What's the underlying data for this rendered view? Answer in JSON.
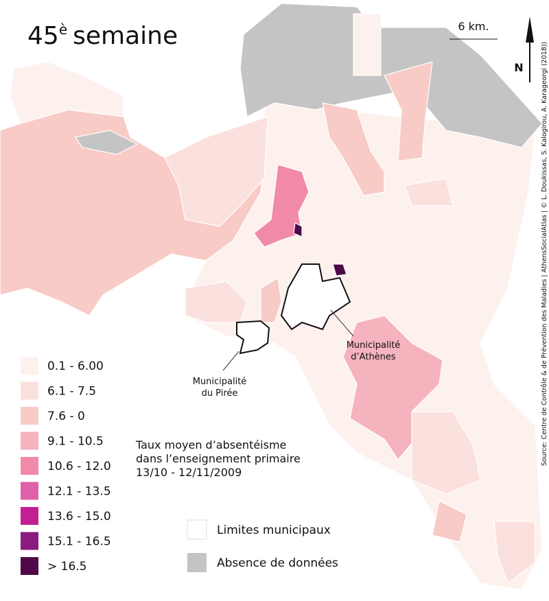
{
  "title": {
    "number": "45",
    "suffix": "è",
    "word": "semaine"
  },
  "scale": "6 km.",
  "north": "N",
  "source": "Source: Centre de Contrôle & de Prévention des Maladies | AthensSocialAtlas | © L. Doukissas, S. Kalogirou, A. Karageorgi (2018))",
  "annotations": {
    "athens": [
      "Municipalité",
      "d’Athènes"
    ],
    "piraeus": [
      "Municipalité",
      "du Pirée"
    ]
  },
  "legend": {
    "title": [
      "Taux moyen d’absentéisme",
      "dans l’enseignement primaire",
      "13/10 - 12/11/2009"
    ],
    "items": [
      {
        "label": "0.1 - 6.00",
        "color": "#fdf1ee"
      },
      {
        "label": "6.1 - 7.5",
        "color": "#fbe1dd"
      },
      {
        "label": "7.6 - 0",
        "color": "#f8cbc6"
      },
      {
        "label": "9.1 - 10.5",
        "color": "#f5b3bd"
      },
      {
        "label": "10.6 - 12.0",
        "color": "#f08aa8"
      },
      {
        "label": "12.1 - 13.5",
        "color": "#e060a9"
      },
      {
        "label": "13.6 - 15.0",
        "color": "#c21f92"
      },
      {
        "label": "15.1 - 16.5",
        "color": "#8c1b80"
      },
      {
        "label": "> 16.5",
        "color": "#4e0a48"
      }
    ],
    "limits": "Limites municipaux",
    "nodata": "Absence de données"
  }
}
